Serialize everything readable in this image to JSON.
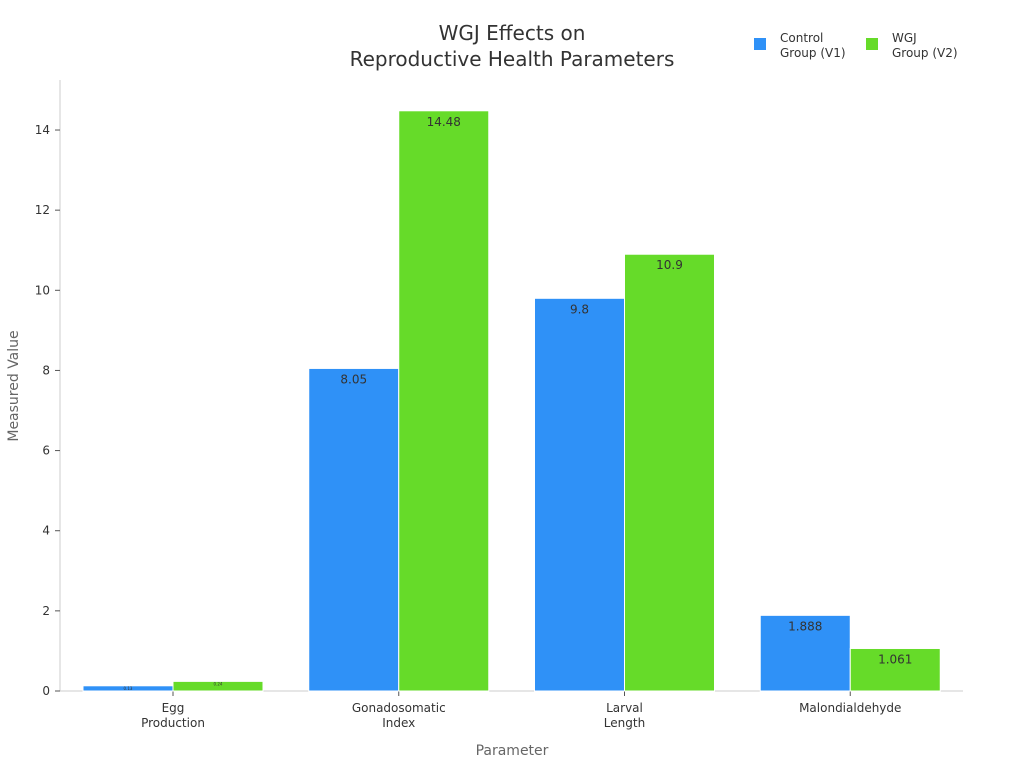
{
  "chart_data": {
    "type": "bar",
    "title": "WGJ Effects on\nReproductive Health Parameters",
    "title_lines": [
      "WGJ Effects on",
      "Reproductive Health Parameters"
    ],
    "xlabel": "Parameter",
    "ylabel": "Measured Value",
    "categories": [
      [
        "Egg",
        "Production"
      ],
      [
        "Gonadosomatic",
        "Index"
      ],
      [
        "Larval",
        "Length"
      ],
      [
        "Malondialdehyde"
      ]
    ],
    "series": [
      {
        "name": "Control Group (V1)",
        "legend_lines": [
          "Control",
          "Group (V1)"
        ],
        "color": "#2f91f7",
        "values": [
          0.13,
          8.05,
          9.8,
          1.888
        ],
        "labels": [
          "0.13",
          "8.05",
          "9.8",
          "1.888"
        ]
      },
      {
        "name": "WGJ Group (V2)",
        "legend_lines": [
          "WGJ",
          "Group (V2)"
        ],
        "color": "#66db29",
        "values": [
          0.24,
          14.48,
          10.9,
          1.061
        ],
        "labels": [
          "0.24",
          "14.48",
          "10.9",
          "1.061"
        ]
      }
    ],
    "ylim": [
      0,
      15.2
    ],
    "yticks": [
      "0",
      "2",
      "4",
      "6",
      "8",
      "10",
      "12",
      "14"
    ],
    "legend": "top-right",
    "grid": false
  }
}
